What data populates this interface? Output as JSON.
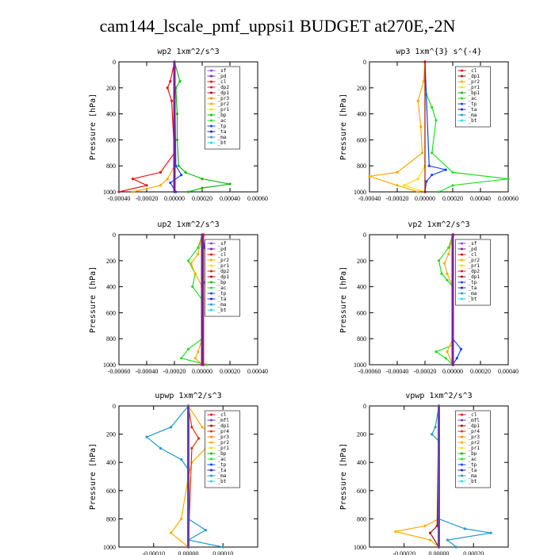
{
  "title": "cam144_lscale_pmf_uppsi1  BUDGET at270E,-2N",
  "colors": {
    "sf": "#8844ff",
    "pd": "#7a1fa0",
    "cl": "#ee1111",
    "dp2": "#cc2222",
    "dp1": "#aa1111",
    "pr3": "#ff8800",
    "pr2": "#ffaa00",
    "pr1": "#ffdd00",
    "bp": "#11bb11",
    "bp1": "#11bb11",
    "ac": "#22dd22",
    "tp": "#1144ff",
    "ta": "#2222cc",
    "ma": "#2299cc",
    "bt": "#22dddd",
    "mfl": "#6644aa",
    "pr4": "#dd3300"
  },
  "chart_data": [
    {
      "type": "line",
      "title": "wp2  1xm^2/s^3",
      "ylabel": "Pressure [hPa]",
      "ylim": [
        1000,
        0
      ],
      "xlim": [
        -0.0004,
        0.0006
      ],
      "yticks": [
        "0",
        "200",
        "400",
        "600",
        "800",
        "1000"
      ],
      "xticks": [
        "-0.00040",
        "-0.00020",
        "0.00000",
        "0.00020",
        "0.00040",
        "0.00060"
      ],
      "legend": [
        "_sf",
        "_pd",
        "_cl",
        "_dp2",
        "_dp1",
        "_pr3",
        "_pr2",
        "_pr1",
        "_bp",
        "_ac",
        "_tp",
        "_ta",
        "_ma",
        "_bt"
      ],
      "series": [
        {
          "key": "bp",
          "name": "_bp",
          "y": [
            0,
            150,
            200,
            400,
            600,
            800,
            850,
            900,
            940,
            970,
            1000
          ],
          "x": [
            0,
            4e-05,
            1e-05,
            2e-05,
            2e-05,
            3e-05,
            8e-05,
            0.0002,
            0.0004,
            0.0002,
            0.0001
          ]
        },
        {
          "key": "cl",
          "name": "_cl",
          "y": [
            0,
            150,
            200,
            300,
            700,
            850,
            900,
            950,
            1000
          ],
          "x": [
            0,
            -3e-05,
            -5e-05,
            -2e-05,
            0,
            -0.0001,
            -0.0003,
            -0.0002,
            -0.0004
          ]
        },
        {
          "key": "pr2",
          "name": "_pr2",
          "y": [
            0,
            800,
            900,
            950,
            1000
          ],
          "x": [
            0,
            0,
            -5e-05,
            -0.0001,
            -0.0003
          ]
        },
        {
          "key": "tp",
          "name": "_tp",
          "y": [
            0,
            800,
            870,
            930,
            1000
          ],
          "x": [
            0,
            1e-05,
            5e-05,
            -3e-05,
            1e-05
          ]
        },
        {
          "key": "pd",
          "name": "_pd",
          "y": [
            0,
            1000
          ],
          "x": [
            0,
            0
          ]
        }
      ]
    },
    {
      "type": "line",
      "title": "wp3  1xm^{3} s^{-4}",
      "ylabel": "Pressure [hPa]",
      "ylim": [
        1000,
        0
      ],
      "xlim": [
        -0.0004,
        0.0006
      ],
      "yticks": [
        "0",
        "200",
        "400",
        "600",
        "800",
        "1000"
      ],
      "xticks": [
        "-0.00040",
        "-0.00020",
        "0.00000",
        "0.00020",
        "0.00040",
        "0.00060"
      ],
      "legend": [
        "_cl",
        "_dp1",
        "_pr2",
        "_pr1",
        "_bp1",
        "_ac",
        "_tp",
        "_ta",
        "_ma",
        "_bt"
      ],
      "series": [
        {
          "key": "ac",
          "name": "_ac",
          "y": [
            0,
            150,
            250,
            350,
            450,
            700,
            850,
            900,
            950,
            1000
          ],
          "x": [
            0,
            0,
            1e-05,
            5e-05,
            8e-05,
            5e-05,
            0.0002,
            0.0006,
            0.0002,
            0.0001
          ]
        },
        {
          "key": "pr2",
          "name": "_pr2",
          "y": [
            0,
            150,
            300,
            500,
            700,
            850,
            880,
            950,
            1000
          ],
          "x": [
            0,
            -1e-05,
            -5e-05,
            -3e-05,
            -2e-05,
            -0.0002,
            -0.0004,
            -0.0002,
            -5e-05
          ]
        },
        {
          "key": "pr1",
          "name": "_pr1",
          "y": [
            0,
            800,
            900,
            950,
            1000
          ],
          "x": [
            0,
            0,
            -5e-05,
            -0.00015,
            0
          ]
        },
        {
          "key": "tp",
          "name": "_tp",
          "y": [
            0,
            800,
            830,
            870,
            920,
            1000
          ],
          "x": [
            0,
            3e-05,
            0.00015,
            5e-05,
            1e-05,
            0
          ]
        },
        {
          "key": "dp1",
          "name": "_dp1",
          "y": [
            0,
            1000
          ],
          "x": [
            0,
            0
          ]
        }
      ]
    },
    {
      "type": "line",
      "title": "up2  1xm^2/s^3",
      "ylabel": "Pressure [hPa]",
      "ylim": [
        1000,
        0
      ],
      "xlim": [
        -0.0006,
        0.0004
      ],
      "yticks": [
        "0",
        "200",
        "400",
        "600",
        "800",
        "1000"
      ],
      "xticks": [
        "-0.00060",
        "-0.00040",
        "-0.00020",
        "0.00000",
        "0.00020",
        "0.00040"
      ],
      "legend": [
        "_sf",
        "_pd",
        "_cl",
        "_pr2",
        "_pr1",
        "_dp2",
        "_dp1",
        "_bp",
        "_ac",
        "_tp",
        "_ta",
        "_ma",
        "_bt"
      ],
      "series": [
        {
          "key": "ac",
          "name": "_ac",
          "y": [
            0,
            100,
            200,
            300,
            400,
            500,
            800,
            880,
            950,
            1000
          ],
          "x": [
            0,
            -3e-05,
            -0.0001,
            -5e-05,
            -7e-05,
            0,
            0,
            -0.0001,
            -0.00015,
            3e-05
          ]
        },
        {
          "key": "pr2",
          "name": "_pr2",
          "y": [
            0,
            150,
            220,
            300,
            400,
            800,
            900,
            950,
            1000
          ],
          "x": [
            0,
            -3e-05,
            -8e-05,
            -5e-05,
            0,
            0,
            -3e-05,
            -5e-05,
            0
          ]
        },
        {
          "key": "tp",
          "name": "_tp",
          "y": [
            0,
            100,
            170,
            250,
            300,
            400,
            1000
          ],
          "x": [
            0,
            2e-05,
            3e-05,
            6e-05,
            5e-05,
            0,
            0
          ]
        },
        {
          "key": "cl",
          "name": "_cl",
          "y": [
            0,
            1000
          ],
          "x": [
            1e-05,
            1e-05
          ]
        },
        {
          "key": "pd",
          "name": "_pd",
          "y": [
            0,
            1000
          ],
          "x": [
            0,
            0
          ]
        }
      ]
    },
    {
      "type": "line",
      "title": "vp2  1xm^2/s^3",
      "ylabel": "Pressure [hPa]",
      "ylim": [
        1000,
        0
      ],
      "xlim": [
        -0.0006,
        0.0004
      ],
      "yticks": [
        "0",
        "200",
        "400",
        "600",
        "800",
        "1000"
      ],
      "xticks": [
        "-0.00060",
        "-0.00040",
        "-0.00020",
        "0.00000",
        "0.00020",
        "0.00040"
      ],
      "legend": [
        "_sf",
        "_pd",
        "_cl",
        "_pr2",
        "_pr1",
        "_dp2",
        "_dp1",
        "_tp",
        "_ta",
        "_ma",
        "_bt"
      ],
      "series": [
        {
          "key": "ac",
          "name": "_ac",
          "y": [
            0,
            100,
            200,
            300,
            350,
            400,
            850,
            900,
            950,
            1000
          ],
          "x": [
            0,
            -3e-05,
            -0.0001,
            -8e-05,
            -4e-05,
            0,
            0,
            -0.00012,
            -5e-05,
            0
          ]
        },
        {
          "key": "pr2",
          "name": "_pr2",
          "y": [
            0,
            150,
            220,
            300,
            400,
            800,
            900,
            1000
          ],
          "x": [
            0,
            -3e-05,
            -6e-05,
            -4e-05,
            0,
            0,
            -4e-05,
            0
          ]
        },
        {
          "key": "tp",
          "name": "_tp",
          "y": [
            0,
            800,
            880,
            950,
            1000
          ],
          "x": [
            0,
            0,
            6e-05,
            3e-05,
            0
          ]
        },
        {
          "key": "cl",
          "name": "_cl",
          "y": [
            0,
            1000
          ],
          "x": [
            5e-06,
            5e-06
          ]
        },
        {
          "key": "pd",
          "name": "_pd",
          "y": [
            0,
            1000
          ],
          "x": [
            0,
            0
          ]
        }
      ]
    },
    {
      "type": "line",
      "title": "upwp  1xm^2/s^3",
      "ylabel": "Pressure [hPa]",
      "ylim": [
        1000,
        0
      ],
      "xlim": [
        -0.0002,
        0.0002
      ],
      "yticks": [
        "0",
        "200",
        "400",
        "600",
        "800",
        "1000"
      ],
      "xticks": [
        "-0.00010",
        "0.00000",
        "0.00010"
      ],
      "legend": [
        "_cl",
        "_mfl",
        "_dp1",
        "_pr4",
        "_pr3",
        "_pr2",
        "_pr1",
        "_bp",
        "_ac",
        "_tp",
        "_ta",
        "_ma",
        "_bt"
      ],
      "series": [
        {
          "key": "ma",
          "name": "_ma",
          "y": [
            0,
            150,
            220,
            300,
            380,
            450,
            800,
            880,
            950,
            1000
          ],
          "x": [
            0,
            -5e-05,
            -0.00012,
            -8e-05,
            -2e-05,
            0,
            0,
            5e-05,
            0,
            0.0001
          ]
        },
        {
          "key": "pr2",
          "name": "_pr2",
          "y": [
            0,
            150,
            230,
            300,
            400,
            500,
            800,
            900,
            1000
          ],
          "x": [
            0,
            4e-05,
            9e-05,
            5e-05,
            1e-05,
            0,
            -2e-05,
            -5e-05,
            0
          ]
        },
        {
          "key": "pr4",
          "name": "_pr4",
          "y": [
            0,
            150,
            230,
            300,
            1000
          ],
          "x": [
            0,
            1e-05,
            3e-05,
            1e-05,
            0
          ]
        },
        {
          "key": "mfl",
          "name": "_mfl",
          "y": [
            0,
            1000
          ],
          "x": [
            0,
            0
          ]
        }
      ]
    },
    {
      "type": "line",
      "title": "vpwp  1xm^2/s^3",
      "ylabel": "Pressure [hPa]",
      "ylim": [
        1000,
        0
      ],
      "xlim": [
        -0.0004,
        0.0004
      ],
      "yticks": [
        "0",
        "200",
        "400",
        "600",
        "800",
        "1000"
      ],
      "xticks": [
        "-0.00020",
        "0.00000",
        "0.00020"
      ],
      "legend": [
        "_cl",
        "_mfl",
        "_dp1",
        "_pr4",
        "_pr3",
        "_pr2",
        "_pr1",
        "_bp",
        "_ac",
        "_tp",
        "_ta",
        "_ma",
        "_bt"
      ],
      "series": [
        {
          "key": "ma",
          "name": "_ma",
          "y": [
            0,
            150,
            200,
            250,
            800,
            870,
            900,
            950,
            1000
          ],
          "x": [
            0,
            -2e-05,
            -4e-05,
            0,
            0,
            0.00015,
            0.0003,
            5e-05,
            0.0001
          ]
        },
        {
          "key": "pr2",
          "name": "_pr2",
          "y": [
            0,
            800,
            850,
            890,
            950,
            1000
          ],
          "x": [
            0,
            0,
            -8e-05,
            -0.00025,
            -5e-05,
            0
          ]
        },
        {
          "key": "dp1",
          "name": "_dp1",
          "y": [
            0,
            850,
            900,
            1000
          ],
          "x": [
            0,
            -1e-05,
            -5e-05,
            0
          ]
        },
        {
          "key": "mfl",
          "name": "_mfl",
          "y": [
            0,
            1000
          ],
          "x": [
            0,
            0
          ]
        }
      ]
    }
  ]
}
